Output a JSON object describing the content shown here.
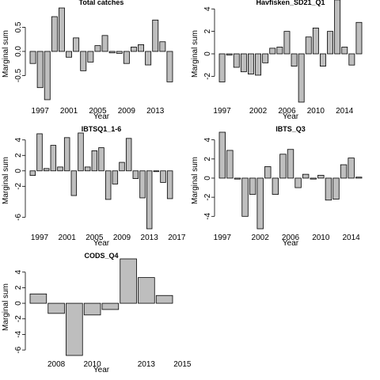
{
  "chart_data": [
    {
      "type": "bar",
      "title": "Total catches",
      "xlabel": "Year",
      "ylabel": "Marginal sum",
      "ylim": [
        -1.05,
        0.95
      ],
      "yticks": [
        0.5,
        0.0,
        -0.5
      ],
      "ytick_labels": [
        "0.5",
        "0.0",
        "-0.5"
      ],
      "x_start": 1996,
      "xticks": [
        1997,
        2001,
        2005,
        2009,
        2013
      ],
      "xtick_labels": [
        "1997",
        "2001",
        "2005",
        "2009",
        "2013"
      ],
      "values": [
        -0.25,
        -0.75,
        -1.0,
        0.72,
        0.9,
        -0.12,
        0.28,
        -0.4,
        -0.22,
        0.12,
        0.33,
        -0.03,
        -0.04,
        -0.25,
        0.09,
        0.14,
        -0.28,
        0.65,
        0.2,
        -0.63
      ]
    },
    {
      "type": "bar",
      "title": "Havfisken_SD21_Q1",
      "xlabel": "Year",
      "ylabel": "Marginal sum",
      "ylim": [
        -4.3,
        4.3
      ],
      "yticks": [
        4,
        2,
        0,
        -2
      ],
      "ytick_labels": [
        "4",
        "2",
        "0",
        "-2"
      ],
      "x_start": 1997,
      "xticks": [
        1997,
        2002,
        2006,
        2010,
        2014
      ],
      "xtick_labels": [
        "1997",
        "2002",
        "2006",
        "2010",
        "2014"
      ],
      "values": [
        -2.5,
        -0.1,
        -1.2,
        -1.6,
        -1.8,
        -1.9,
        -0.8,
        0.5,
        0.6,
        2.0,
        -1.1,
        -4.3,
        1.5,
        2.3,
        -1.1,
        2.0,
        4.8,
        0.6,
        -1.0,
        2.8
      ]
    },
    {
      "type": "bar",
      "title": "IBTSQ1_1-6",
      "xlabel": "Year",
      "ylabel": "Marginal sum",
      "ylim": [
        -7.5,
        5.0
      ],
      "yticks": [
        4,
        2,
        0,
        -2,
        -6
      ],
      "ytick_labels": [
        "4",
        "2",
        "0",
        "-2",
        "-6"
      ],
      "x_start": 1996,
      "xticks": [
        1997,
        2001,
        2005,
        2009,
        2013,
        2017
      ],
      "xtick_labels": [
        "1997",
        "2001",
        "2005",
        "2009",
        "2013",
        "2017"
      ],
      "values": [
        -0.6,
        4.8,
        0.3,
        3.3,
        0.5,
        4.3,
        -3.2,
        4.9,
        0.5,
        2.6,
        3.0,
        -3.7,
        -1.7,
        1.1,
        4.2,
        -1.0,
        -3.5,
        -7.5,
        -0.1,
        -1.5,
        -3.6
      ]
    },
    {
      "type": "bar",
      "title": "IBTS_Q3",
      "xlabel": "Year",
      "ylabel": "Marginal sum",
      "ylim": [
        -5.3,
        4.8
      ],
      "yticks": [
        4,
        2,
        0,
        -2,
        -4
      ],
      "ytick_labels": [
        "4",
        "2",
        "0",
        "-2",
        "-4"
      ],
      "x_start": 1997,
      "xticks": [
        1997,
        2002,
        2006,
        2010,
        2014
      ],
      "xtick_labels": [
        "1997",
        "2002",
        "2006",
        "2010",
        "2014"
      ],
      "values": [
        4.8,
        2.9,
        -0.1,
        -4.0,
        -1.7,
        -5.3,
        1.2,
        -1.7,
        2.5,
        3.0,
        -1.0,
        0.4,
        -0.1,
        0.3,
        -2.3,
        -2.2,
        1.4,
        2.1,
        0.1
      ]
    },
    {
      "type": "bar",
      "title": "CODS_Q4",
      "xlabel": "Year",
      "ylabel": "Marginal sum",
      "ylim": [
        -6.7,
        5.7
      ],
      "yticks": [
        4,
        2,
        0,
        -2,
        -4,
        -6
      ],
      "ytick_labels": [
        "4",
        "2",
        "0",
        "-2",
        "-4",
        "-6"
      ],
      "x_start": 2007,
      "xticks": [
        2008,
        2010,
        2013,
        2015
      ],
      "xtick_labels": [
        "2008",
        "2010",
        "2013",
        "2015"
      ],
      "values": [
        1.2,
        -1.3,
        -6.7,
        -1.5,
        -0.8,
        5.7,
        3.3,
        1.0
      ]
    }
  ],
  "style": {
    "bar_fill": "#bebebe",
    "bar_stroke": "#000000"
  }
}
